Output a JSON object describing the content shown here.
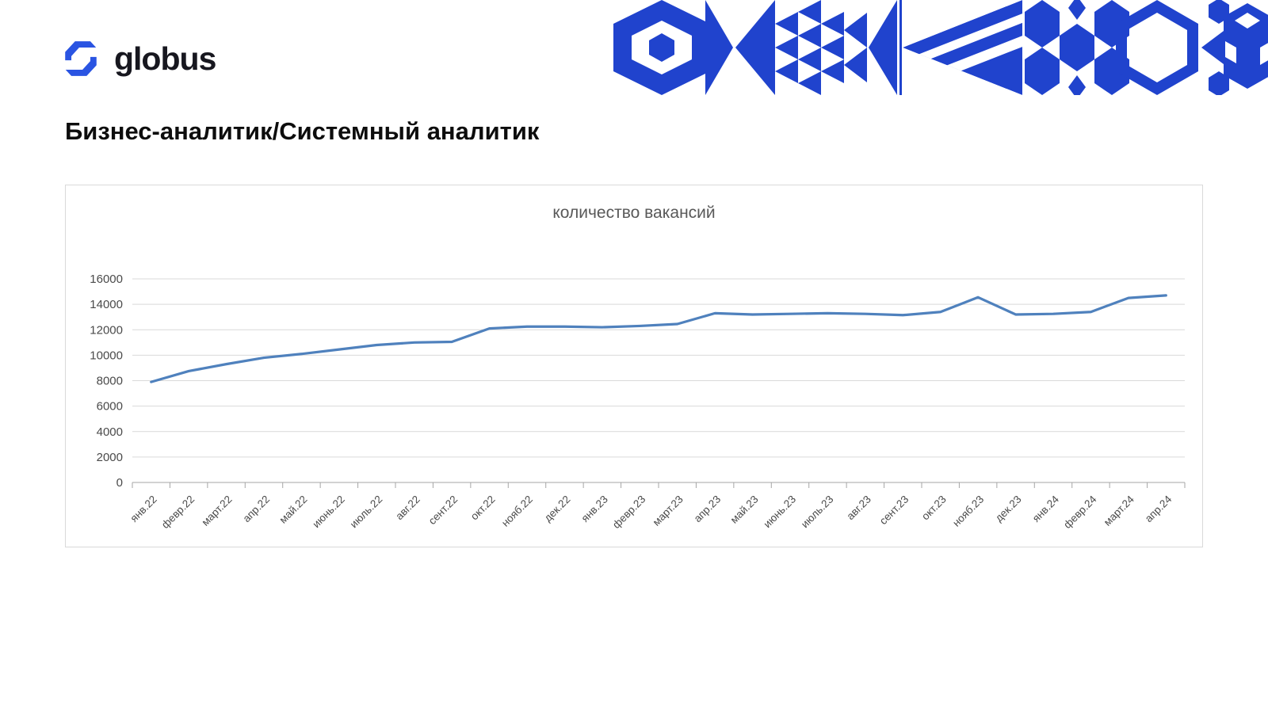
{
  "header": {
    "logo_text": "globus",
    "title": "Бизнес-аналитик/Системный аналитик"
  },
  "icons": {
    "logo_icon": "globus-hexagon-s-logo",
    "banner": "blue-geometric-mosaic-pattern (hexagons, triangles, striped triangle, honeycomb, cube)"
  },
  "colors": {
    "logo_blue": "#2a54e2",
    "banner_blue": "#2043cd",
    "line_blue": "#4f81bd",
    "grid_gray": "#d9d9d9",
    "axis_gray": "#a6a6a6",
    "text_gray": "#595959",
    "tick_text": "#4a4a4a",
    "title_black": "#0d0d0d"
  },
  "chart_data": {
    "type": "line",
    "title": "количество вакансий",
    "categories": [
      "янв.22",
      "февр.22",
      "март.22",
      "апр.22",
      "май.22",
      "июнь.22",
      "июль.22",
      "авг.22",
      "сент.22",
      "окт.22",
      "нояб.22",
      "дек.22",
      "янв.23",
      "февр.23",
      "март.23",
      "апр.23",
      "май.23",
      "июнь.23",
      "июль.23",
      "авг.23",
      "сент.23",
      "окт.23",
      "нояб.23",
      "дек.23",
      "янв.24",
      "февр.24",
      "март.24",
      "апр.24"
    ],
    "values": [
      7900,
      8750,
      9300,
      9800,
      10100,
      10450,
      10800,
      11000,
      11050,
      12100,
      12250,
      12250,
      12200,
      12300,
      12450,
      13300,
      13200,
      13250,
      13300,
      13250,
      13150,
      13400,
      14550,
      13200,
      13250,
      13400,
      14500,
      14700
    ],
    "xlabel": "",
    "ylabel": "",
    "ylim": [
      0,
      16000
    ],
    "ytick_step": 2000,
    "grid": true,
    "legend": "none",
    "x_label_rotation": -45
  }
}
